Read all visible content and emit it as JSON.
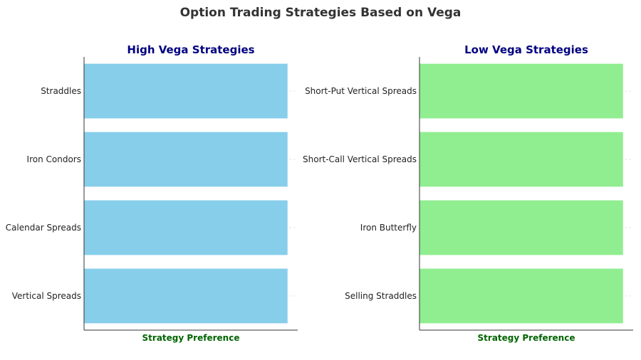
{
  "title": "Option Trading Strategies Based on Vega",
  "chart_data": [
    {
      "type": "bar",
      "orientation": "horizontal",
      "title": "High Vega Strategies",
      "xlabel": "Strategy Preference",
      "categories": [
        "Straddles",
        "Iron Condors",
        "Calendar Spreads",
        "Vertical Spreads"
      ],
      "values": [
        1,
        1,
        1,
        1
      ],
      "xlim": [
        0,
        1.05
      ],
      "bar_color": "#87CEEB",
      "grid": true,
      "x_ticks_visible": false
    },
    {
      "type": "bar",
      "orientation": "horizontal",
      "title": "Low Vega Strategies",
      "xlabel": "Strategy Preference",
      "categories": [
        "Short-Put Vertical Spreads",
        "Short-Call Vertical Spreads",
        "Iron Butterfly",
        "Selling Straddles"
      ],
      "values": [
        1,
        1,
        1,
        1
      ],
      "xlim": [
        0,
        1.05
      ],
      "bar_color": "#90EE90",
      "grid": true,
      "x_ticks_visible": false
    }
  ],
  "colors": {
    "title": "#333333",
    "panel_title": "#000080",
    "axis_label": "#006400"
  }
}
